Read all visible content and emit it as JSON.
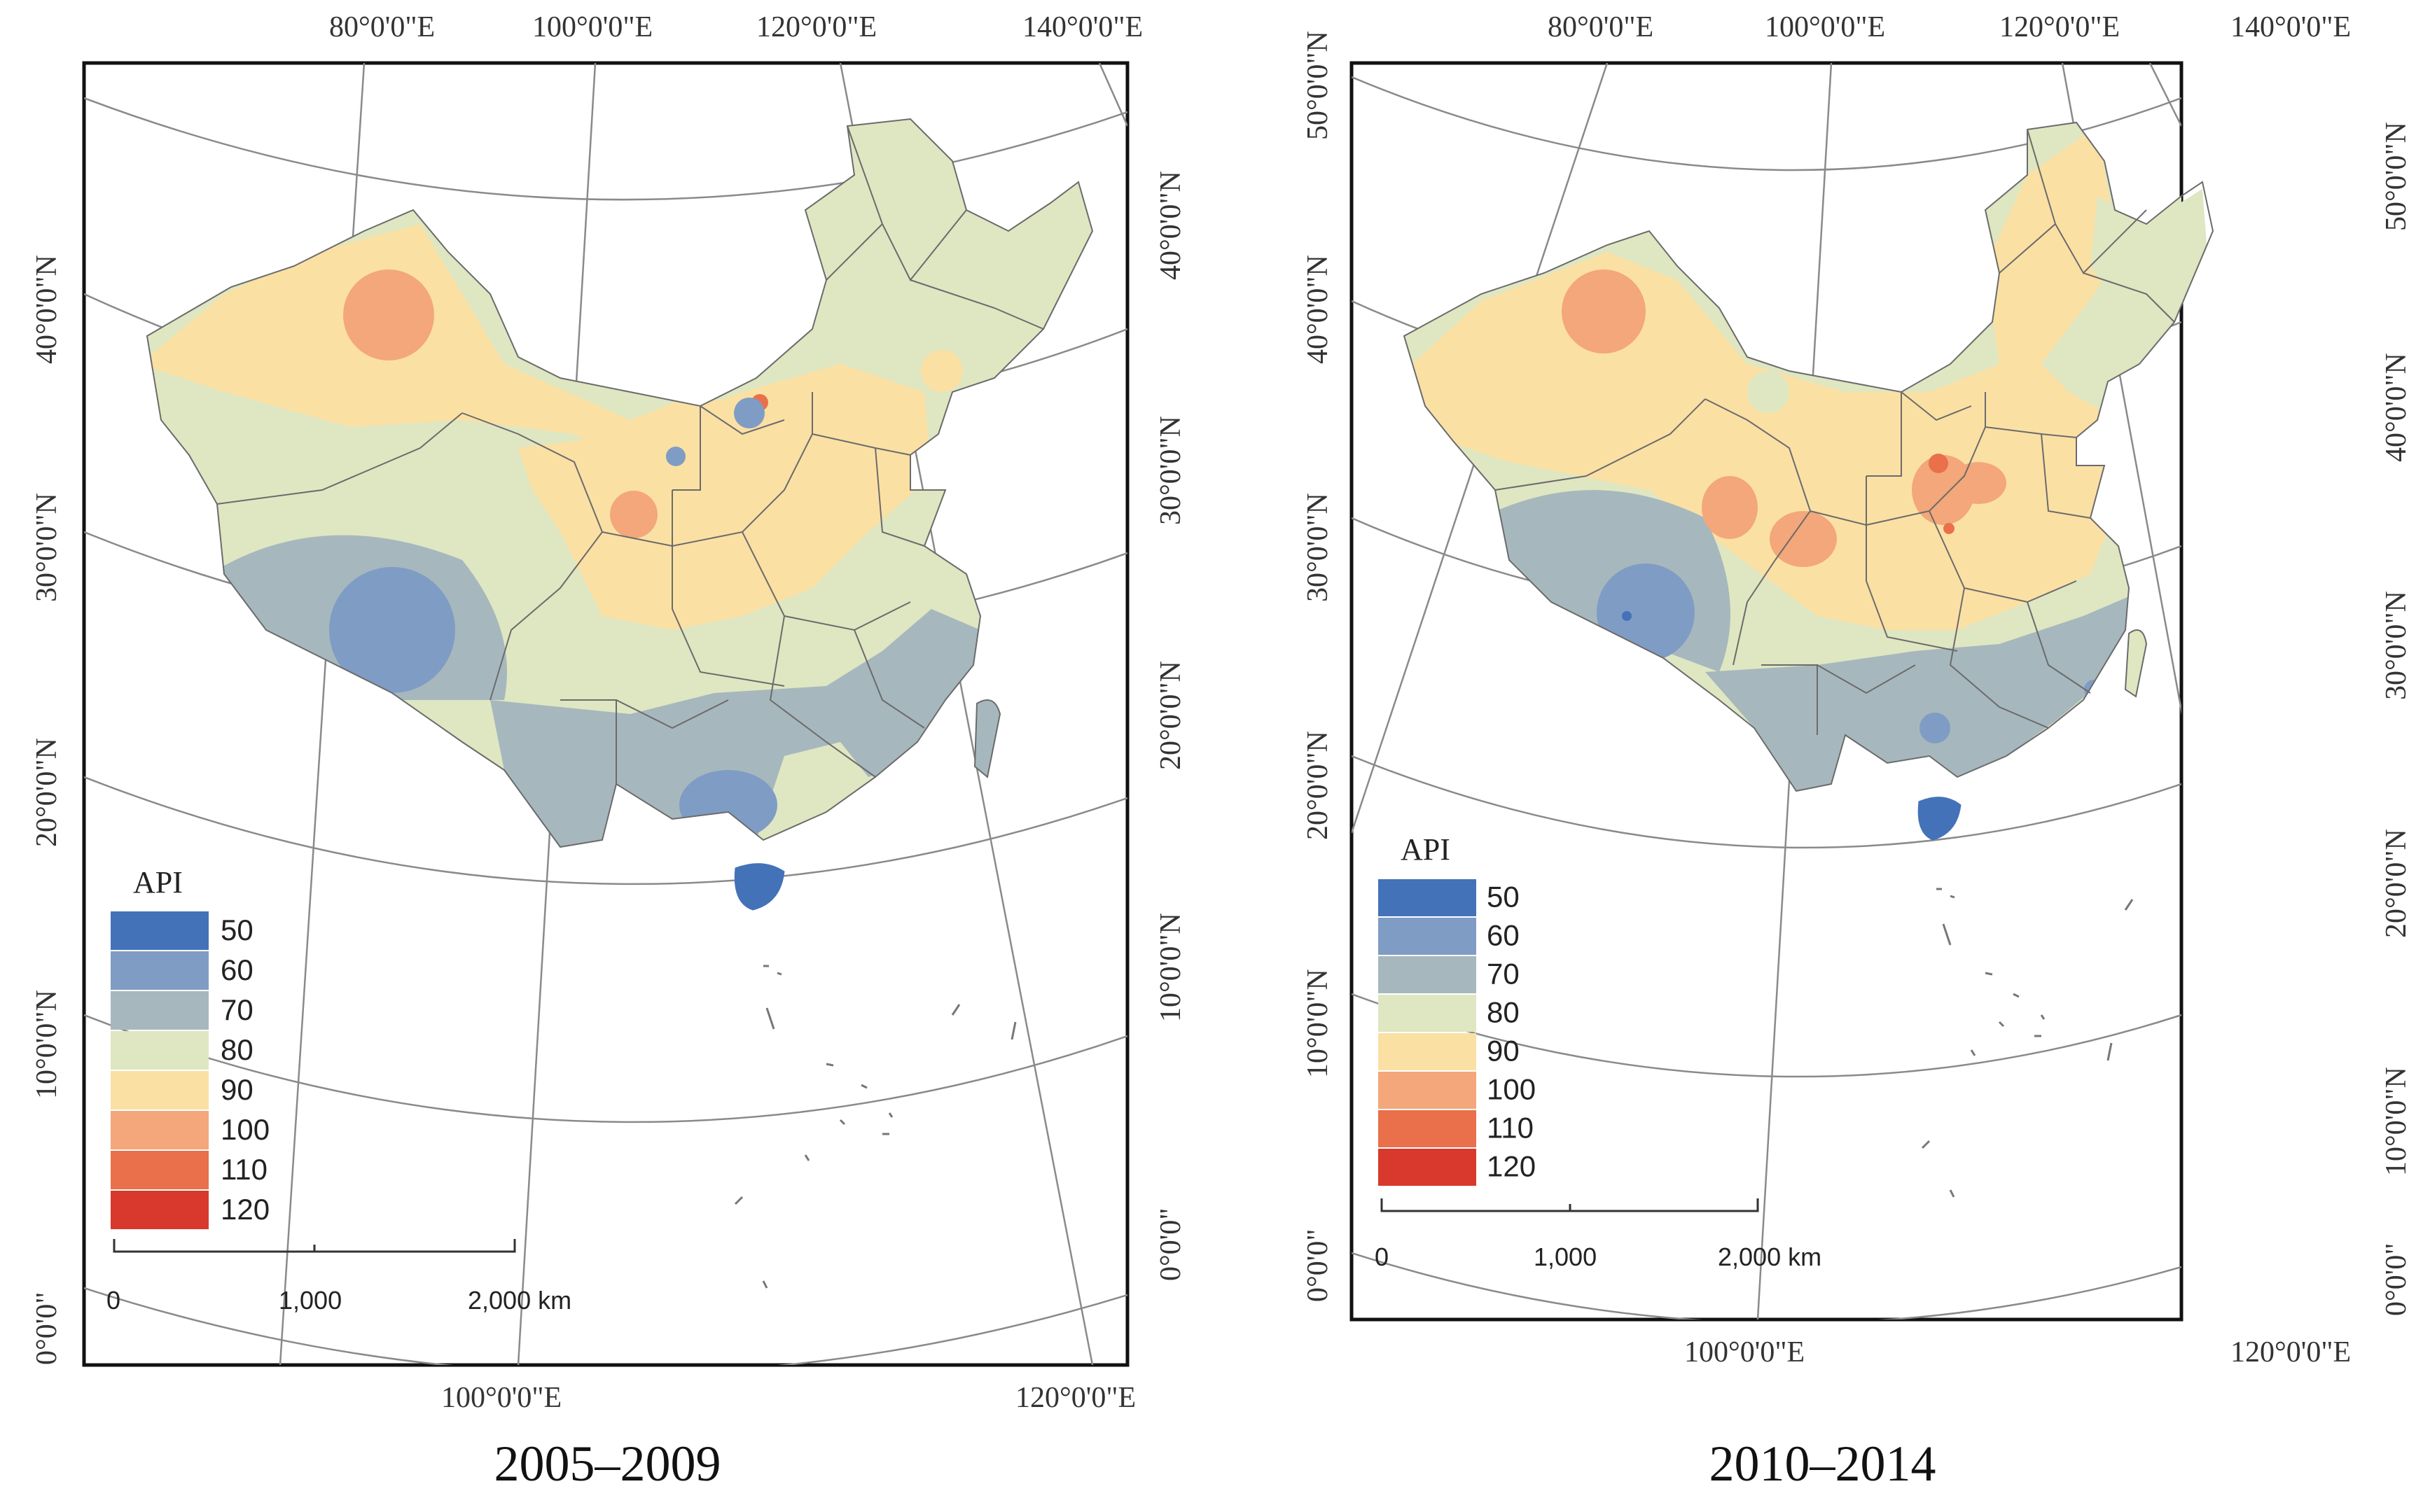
{
  "figure": {
    "legend_title": "API",
    "legend_classes": [
      {
        "label": "50",
        "color": "#4472b8"
      },
      {
        "label": "60",
        "color": "#7f9cc4"
      },
      {
        "label": "70",
        "color": "#a6b8bd"
      },
      {
        "label": "80",
        "color": "#dfe6c2"
      },
      {
        "label": "90",
        "color": "#fbe0a4"
      },
      {
        "label": "100",
        "color": "#f3a77a"
      },
      {
        "label": "110",
        "color": "#e9704b"
      },
      {
        "label": "120",
        "color": "#d8392c"
      }
    ],
    "scale_bar": {
      "labels": [
        "0",
        "1,000",
        "2,000 km"
      ]
    },
    "colors": {
      "frame": "#111111",
      "graticule": "#8a8a8a",
      "borders": "#6b6b6b",
      "sea": "#ffffff"
    }
  },
  "panels": [
    {
      "caption": "2005–2009",
      "top_labels": [
        "80°0'0\"E",
        "100°0'0\"E",
        "120°0'0\"E",
        "140°0'0\"E"
      ],
      "bottom_labels": [
        "100°0'0\"E",
        "120°0'0\"E"
      ],
      "left_labels": [
        "40°0'0\"N",
        "30°0'0\"N",
        "20°0'0\"N",
        "10°0'0\"N",
        "0°0'0\""
      ],
      "right_labels": [
        "40°0'0\"N",
        "30°0'0\"N",
        "20°0'0\"N",
        "10°0'0\"N",
        "0°0'0\""
      ]
    },
    {
      "caption": "2010–2014",
      "top_labels": [
        "80°0'0\"E",
        "100°0'0\"E",
        "120°0'0\"E",
        "140°0'0\"E"
      ],
      "bottom_labels": [
        "100°0'0\"E",
        "120°0'0\"E"
      ],
      "left_labels": [
        "50°0'0\"N",
        "40°0'0\"N",
        "30°0'0\"N",
        "20°0'0\"N",
        "10°0'0\"N",
        "0°0'0\""
      ],
      "right_labels": [
        "50°0'0\"N",
        "40°0'0\"N",
        "30°0'0\"N",
        "20°0'0\"N",
        "10°0'0\"N",
        "0°0'0\""
      ]
    }
  ]
}
